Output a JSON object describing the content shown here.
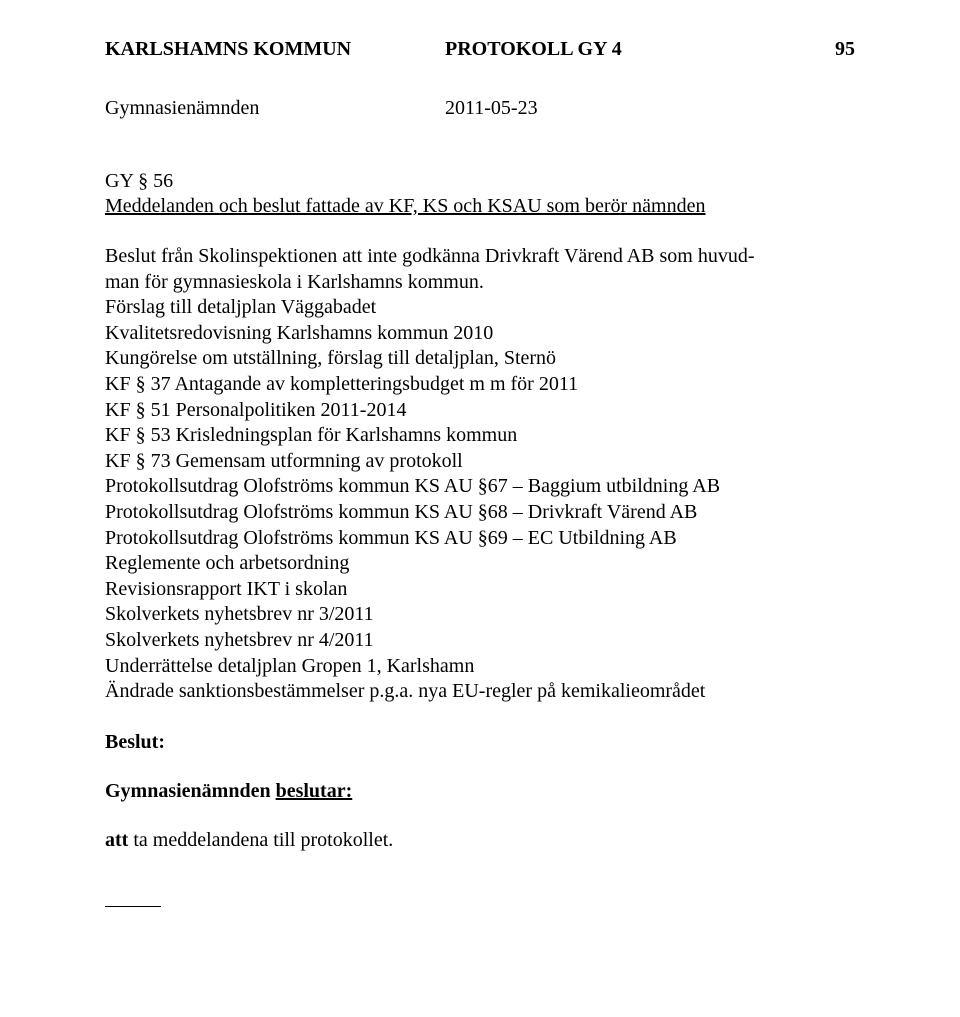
{
  "header": {
    "org": "KARLSHAMNS KOMMUN",
    "protocol": "PROTOKOLL GY 4",
    "page": "95"
  },
  "subheader": {
    "body": "Gymnasienämnden",
    "date": "2011-05-23"
  },
  "section": {
    "ref": "GY § 56",
    "title": "Meddelanden och beslut fattade av KF, KS och KSAU som berör nämnden"
  },
  "body_lines": [
    "Beslut från Skolinspektionen att inte godkänna Drivkraft Värend AB som huvud-",
    "man för gymnasieskola i Karlshamns kommun.",
    "Förslag till detaljplan Väggabadet",
    "Kvalitetsredovisning Karlshamns kommun 2010",
    "Kungörelse om utställning, förslag till detaljplan, Sternö",
    "KF § 37 Antagande av kompletteringsbudget m m för 2011",
    "KF § 51 Personalpolitiken 2011-2014",
    "KF § 53 Krisledningsplan för Karlshamns kommun",
    "KF § 73 Gemensam utformning av protokoll",
    "Protokollsutdrag Olofströms kommun KS AU §67 – Baggium utbildning AB",
    "Protokollsutdrag Olofströms kommun KS AU §68 – Drivkraft Värend AB",
    "Protokollsutdrag Olofströms kommun KS AU §69 – EC Utbildning AB",
    "Reglemente och arbetsordning",
    "Revisionsrapport IKT i skolan",
    "Skolverkets nyhetsbrev nr 3/2011",
    "Skolverkets nyhetsbrev nr 4/2011",
    "Underrättelse detaljplan Gropen 1, Karlshamn",
    "Ändrade sanktionsbestämmelser p.g.a. nya EU-regler på kemikalieområdet"
  ],
  "beslut_label": "Beslut:",
  "decision": {
    "prefix": "Gymnasienämnden ",
    "underlined": "beslutar:"
  },
  "att_prefix_bold": "att",
  "att_rest": " ta meddelandena till protokollet."
}
